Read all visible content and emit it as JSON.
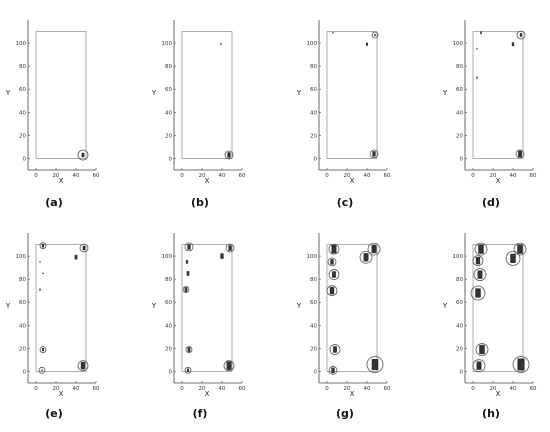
{
  "figure": {
    "background": "#ffffff",
    "axis_color": "#444444",
    "rect_color": "#9a9a9a",
    "cluster_color": "#333333",
    "circle_color": "#555555"
  },
  "chart_data": [
    {
      "type": "scatter",
      "panel": "(a)",
      "xlabel": "X",
      "ylabel": "Y",
      "xlim": [
        -10,
        60
      ],
      "ylim": [
        -10,
        120
      ],
      "xticks": [
        "0",
        "20",
        "40",
        "60"
      ],
      "yticks": [
        "0",
        "20",
        "40",
        "60",
        "80",
        "100"
      ],
      "boundary": {
        "x": [
          0,
          50
        ],
        "y": [
          0,
          110
        ]
      },
      "clusters": [
        {
          "x": 47,
          "y": 3,
          "s": 2.5,
          "r": 5
        }
      ]
    },
    {
      "type": "scatter",
      "panel": "(b)",
      "xlabel": "X",
      "ylabel": "Y",
      "xlim": [
        -10,
        60
      ],
      "ylim": [
        -10,
        120
      ],
      "xticks": [
        "0",
        "20",
        "40",
        "60"
      ],
      "yticks": [
        "0",
        "20",
        "40",
        "60",
        "80",
        "100"
      ],
      "boundary": {
        "x": [
          0,
          50
        ],
        "y": [
          0,
          110
        ]
      },
      "clusters": [
        {
          "x": 47,
          "y": 3,
          "s": 3,
          "r": 4
        },
        {
          "x": 39,
          "y": 99,
          "s": 1,
          "r": 0
        }
      ]
    },
    {
      "type": "scatter",
      "panel": "(c)",
      "xlabel": "X",
      "ylabel": "Y",
      "xlim": [
        -10,
        60
      ],
      "ylim": [
        -10,
        120
      ],
      "xticks": [
        "0",
        "20",
        "40",
        "60"
      ],
      "yticks": [
        "0",
        "20",
        "40",
        "60",
        "80",
        "100"
      ],
      "boundary": {
        "x": [
          0,
          50
        ],
        "y": [
          0,
          110
        ]
      },
      "clusters": [
        {
          "x": 47,
          "y": 4,
          "s": 3,
          "r": 4
        },
        {
          "x": 40,
          "y": 99,
          "s": 1.8,
          "r": 0
        },
        {
          "x": 48,
          "y": 107,
          "s": 1.3,
          "r": 3
        },
        {
          "x": 6,
          "y": 109,
          "s": 0.8,
          "r": 0
        }
      ]
    },
    {
      "type": "scatter",
      "panel": "(d)",
      "xlabel": "X",
      "ylabel": "Y",
      "xlim": [
        -10,
        60
      ],
      "ylim": [
        -10,
        120
      ],
      "xticks": [
        "0",
        "20",
        "40",
        "60"
      ],
      "yticks": [
        "0",
        "20",
        "40",
        "60",
        "80",
        "100"
      ],
      "boundary": {
        "x": [
          0,
          50
        ],
        "y": [
          0,
          110
        ]
      },
      "clusters": [
        {
          "x": 47,
          "y": 4,
          "s": 3.5,
          "r": 4
        },
        {
          "x": 40,
          "y": 99,
          "s": 2.2,
          "r": 0
        },
        {
          "x": 48,
          "y": 107,
          "s": 2,
          "r": 4
        },
        {
          "x": 8,
          "y": 109,
          "s": 1.5,
          "r": 0
        },
        {
          "x": 4,
          "y": 95,
          "s": 0.6,
          "r": 0
        },
        {
          "x": 4,
          "y": 70,
          "s": 1.2,
          "r": 0
        }
      ]
    },
    {
      "type": "scatter",
      "panel": "(e)",
      "xlabel": "X",
      "ylabel": "Y",
      "xlim": [
        -10,
        60
      ],
      "ylim": [
        -10,
        120
      ],
      "xticks": [
        "0",
        "20",
        "40",
        "60"
      ],
      "yticks": [
        "0",
        "20",
        "40",
        "60",
        "80",
        "100"
      ],
      "boundary": {
        "x": [
          0,
          50
        ],
        "y": [
          0,
          110
        ]
      },
      "clusters": [
        {
          "x": 47,
          "y": 5,
          "s": 4,
          "r": 5
        },
        {
          "x": 40,
          "y": 99,
          "s": 2.5,
          "r": 0
        },
        {
          "x": 48,
          "y": 107,
          "s": 2.5,
          "r": 4
        },
        {
          "x": 7,
          "y": 109,
          "s": 2,
          "r": 3
        },
        {
          "x": 4,
          "y": 95,
          "s": 0.8,
          "r": 0
        },
        {
          "x": 7,
          "y": 85,
          "s": 0.8,
          "r": 0
        },
        {
          "x": 4,
          "y": 71,
          "s": 1.3,
          "r": 0
        },
        {
          "x": 7,
          "y": 19,
          "s": 1.8,
          "r": 3
        },
        {
          "x": 6,
          "y": 1,
          "s": 1,
          "r": 3
        }
      ]
    },
    {
      "type": "scatter",
      "panel": "(f)",
      "xlabel": "X",
      "ylabel": "Y",
      "xlim": [
        -10,
        60
      ],
      "ylim": [
        -10,
        120
      ],
      "xticks": [
        "0",
        "20",
        "40",
        "60"
      ],
      "yticks": [
        "0",
        "20",
        "40",
        "60",
        "80",
        "100"
      ],
      "boundary": {
        "x": [
          0,
          50
        ],
        "y": [
          0,
          110
        ]
      },
      "clusters": [
        {
          "x": 47,
          "y": 5,
          "s": 4.5,
          "r": 5
        },
        {
          "x": 40,
          "y": 100,
          "s": 3,
          "r": 0
        },
        {
          "x": 48,
          "y": 107,
          "s": 3,
          "r": 4
        },
        {
          "x": 7,
          "y": 108,
          "s": 3,
          "r": 4
        },
        {
          "x": 5,
          "y": 95,
          "s": 2,
          "r": 0
        },
        {
          "x": 6,
          "y": 85,
          "s": 2.5,
          "r": 0
        },
        {
          "x": 4,
          "y": 71,
          "s": 2.5,
          "r": 3
        },
        {
          "x": 7,
          "y": 19,
          "s": 2.5,
          "r": 3
        },
        {
          "x": 6,
          "y": 1,
          "s": 2,
          "r": 3
        }
      ]
    },
    {
      "type": "scatter",
      "panel": "(g)",
      "xlabel": "X",
      "ylabel": "Y",
      "xlim": [
        -10,
        60
      ],
      "ylim": [
        -10,
        120
      ],
      "xticks": [
        "0",
        "20",
        "40",
        "60"
      ],
      "yticks": [
        "0",
        "20",
        "40",
        "60",
        "80",
        "100"
      ],
      "boundary": {
        "x": [
          0,
          50
        ],
        "y": [
          0,
          110
        ]
      },
      "clusters": [
        {
          "x": 48,
          "y": 6,
          "s": 6,
          "r": 8
        },
        {
          "x": 39,
          "y": 99,
          "s": 4.5,
          "r": 6
        },
        {
          "x": 47,
          "y": 106,
          "s": 4.5,
          "r": 6
        },
        {
          "x": 7,
          "y": 106,
          "s": 4.5,
          "r": 5
        },
        {
          "x": 5,
          "y": 95,
          "s": 3,
          "r": 4
        },
        {
          "x": 7,
          "y": 84,
          "s": 3.5,
          "r": 5
        },
        {
          "x": 5,
          "y": 70,
          "s": 4,
          "r": 5
        },
        {
          "x": 8,
          "y": 19,
          "s": 3.5,
          "r": 5
        },
        {
          "x": 6,
          "y": 1,
          "s": 3,
          "r": 4
        }
      ]
    },
    {
      "type": "scatter",
      "panel": "(h)",
      "xlabel": "X",
      "ylabel": "Y",
      "xlim": [
        -10,
        60
      ],
      "ylim": [
        -10,
        120
      ],
      "xticks": [
        "0",
        "20",
        "40",
        "60"
      ],
      "yticks": [
        "0",
        "20",
        "40",
        "60",
        "80",
        "100"
      ],
      "boundary": {
        "x": [
          0,
          50
        ],
        "y": [
          0,
          110
        ]
      },
      "clusters": [
        {
          "x": 48,
          "y": 6,
          "s": 6.5,
          "r": 8
        },
        {
          "x": 40,
          "y": 98,
          "s": 5,
          "r": 7
        },
        {
          "x": 47,
          "y": 106,
          "s": 5,
          "r": 6
        },
        {
          "x": 8,
          "y": 106,
          "s": 5,
          "r": 6
        },
        {
          "x": 5,
          "y": 96,
          "s": 4,
          "r": 5
        },
        {
          "x": 7,
          "y": 84,
          "s": 4.5,
          "r": 6
        },
        {
          "x": 5,
          "y": 68,
          "s": 5,
          "r": 7
        },
        {
          "x": 9,
          "y": 19,
          "s": 5,
          "r": 6
        },
        {
          "x": 6,
          "y": 5,
          "s": 4.5,
          "r": 6
        }
      ]
    }
  ]
}
